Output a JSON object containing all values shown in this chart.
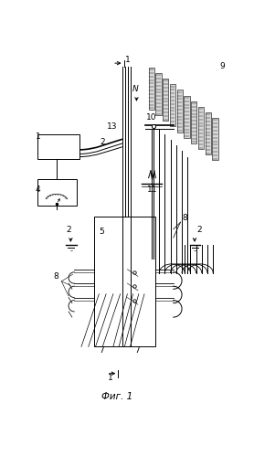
{
  "bg_color": "#ffffff",
  "lc": "#000000",
  "fig_width": 2.78,
  "fig_height": 4.99,
  "dpi": 100,
  "title": "Фиг. 1"
}
